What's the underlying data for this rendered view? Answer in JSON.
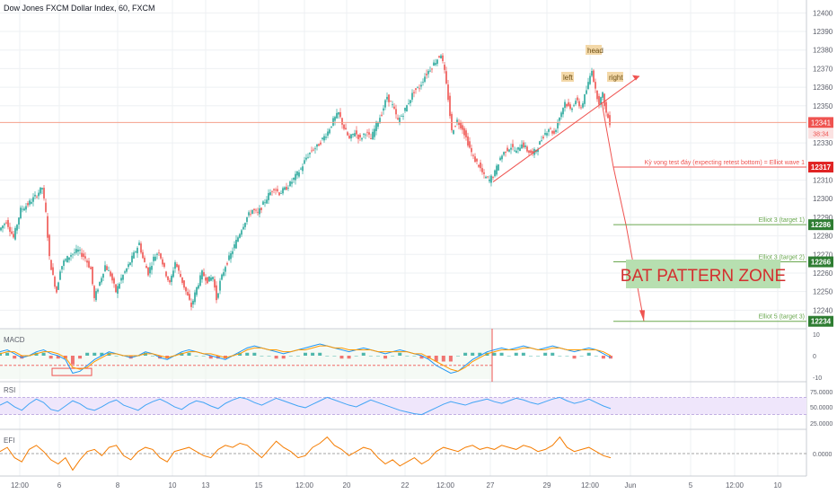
{
  "header": {
    "title": "Dow Jones FXCM Dollar Index, 60, FXCM"
  },
  "colors": {
    "bull": "#26a69a",
    "bear": "#ef5350",
    "grid": "#eef0f3",
    "axis_text": "#5d606b",
    "price_line": "#f5a08c",
    "red_badge": "#e02424",
    "green_badge": "#2e7d32",
    "green_line": "#6aa84f",
    "zone_fill": "#b7dfb0",
    "zone_text": "#d32f2f",
    "macd_line": "#2196f3",
    "signal_line": "#ff9800",
    "rsi_line": "#42a5f5",
    "rsi_band": "#efe6fb",
    "efi_line": "#f57c00"
  },
  "chart_data": [
    {
      "type": "candlestick",
      "name": "price",
      "title": "Dow Jones FXCM Dollar Index, 60, FXCM",
      "ylim": [
        12230,
        12405
      ],
      "y_ticks": [
        12240,
        12250,
        12260,
        12270,
        12280,
        12290,
        12300,
        12310,
        12330,
        12350,
        12360,
        12370,
        12380,
        12390,
        12400
      ],
      "x_ticks": [
        "12:00",
        "6",
        "8",
        "10",
        "13",
        "15",
        "12:00",
        "20",
        "22",
        "12:00",
        "27",
        "29",
        "12:00",
        "Jun",
        "5",
        "12:00",
        "10"
      ],
      "path_points": [
        [
          0,
          12283
        ],
        [
          8,
          12288
        ],
        [
          16,
          12279
        ],
        [
          24,
          12294
        ],
        [
          32,
          12297
        ],
        [
          40,
          12301
        ],
        [
          48,
          12306
        ],
        [
          52,
          12292
        ],
        [
          56,
          12268
        ],
        [
          60,
          12258
        ],
        [
          64,
          12250
        ],
        [
          68,
          12262
        ],
        [
          72,
          12266
        ],
        [
          80,
          12270
        ],
        [
          88,
          12272
        ],
        [
          96,
          12268
        ],
        [
          102,
          12262
        ],
        [
          106,
          12246
        ],
        [
          112,
          12255
        ],
        [
          118,
          12264
        ],
        [
          124,
          12259
        ],
        [
          130,
          12250
        ],
        [
          136,
          12257
        ],
        [
          144,
          12264
        ],
        [
          150,
          12270
        ],
        [
          156,
          12276
        ],
        [
          160,
          12268
        ],
        [
          166,
          12260
        ],
        [
          172,
          12268
        ],
        [
          178,
          12272
        ],
        [
          184,
          12262
        ],
        [
          190,
          12254
        ],
        [
          196,
          12266
        ],
        [
          202,
          12258
        ],
        [
          208,
          12250
        ],
        [
          214,
          12242
        ],
        [
          220,
          12252
        ],
        [
          226,
          12260
        ],
        [
          232,
          12256
        ],
        [
          238,
          12258
        ],
        [
          242,
          12246
        ],
        [
          246,
          12255
        ],
        [
          252,
          12264
        ],
        [
          258,
          12270
        ],
        [
          264,
          12277
        ],
        [
          270,
          12284
        ],
        [
          276,
          12290
        ],
        [
          282,
          12294
        ],
        [
          288,
          12292
        ],
        [
          294,
          12297
        ],
        [
          300,
          12302
        ],
        [
          306,
          12306
        ],
        [
          312,
          12303
        ],
        [
          318,
          12305
        ],
        [
          324,
          12308
        ],
        [
          330,
          12312
        ],
        [
          336,
          12316
        ],
        [
          342,
          12322
        ],
        [
          348,
          12326
        ],
        [
          354,
          12328
        ],
        [
          360,
          12332
        ],
        [
          366,
          12336
        ],
        [
          372,
          12342
        ],
        [
          378,
          12346
        ],
        [
          384,
          12338
        ],
        [
          390,
          12332
        ],
        [
          396,
          12336
        ],
        [
          402,
          12332
        ],
        [
          408,
          12336
        ],
        [
          414,
          12332
        ],
        [
          420,
          12340
        ],
        [
          426,
          12346
        ],
        [
          432,
          12355
        ],
        [
          438,
          12350
        ],
        [
          444,
          12342
        ],
        [
          450,
          12346
        ],
        [
          456,
          12352
        ],
        [
          462,
          12358
        ],
        [
          468,
          12360
        ],
        [
          474,
          12366
        ],
        [
          480,
          12370
        ],
        [
          486,
          12374
        ],
        [
          492,
          12378
        ],
        [
          496,
          12368
        ],
        [
          500,
          12354
        ],
        [
          504,
          12336
        ],
        [
          510,
          12342
        ],
        [
          516,
          12338
        ],
        [
          522,
          12330
        ],
        [
          528,
          12322
        ],
        [
          534,
          12318
        ],
        [
          540,
          12312
        ],
        [
          546,
          12310
        ],
        [
          552,
          12314
        ],
        [
          558,
          12322
        ],
        [
          564,
          12326
        ],
        [
          570,
          12328
        ],
        [
          576,
          12325
        ],
        [
          582,
          12330
        ],
        [
          588,
          12326
        ],
        [
          594,
          12324
        ],
        [
          600,
          12328
        ],
        [
          606,
          12334
        ],
        [
          612,
          12338
        ],
        [
          618,
          12335
        ],
        [
          624,
          12344
        ],
        [
          630,
          12352
        ],
        [
          636,
          12348
        ],
        [
          642,
          12353
        ],
        [
          648,
          12349
        ],
        [
          652,
          12355
        ],
        [
          656,
          12362
        ],
        [
          660,
          12370
        ],
        [
          664,
          12358
        ],
        [
          668,
          12352
        ],
        [
          672,
          12356
        ],
        [
          676,
          12346
        ],
        [
          680,
          12341
        ]
      ]
    },
    {
      "type": "line",
      "name": "MACD",
      "ylim": [
        -12,
        12
      ],
      "y_ticks": [
        "10",
        "0",
        "-10"
      ],
      "series": [
        {
          "name": "MACD",
          "values": [
            2,
            3,
            1,
            -1,
            0,
            2,
            3,
            1,
            0,
            -2,
            -9,
            -8,
            -5,
            -2,
            0,
            2,
            1,
            0,
            -1,
            0,
            2,
            1,
            -1,
            -2,
            0,
            2,
            3,
            2,
            1,
            0,
            -1,
            -2,
            0,
            2,
            4,
            5,
            4,
            3,
            2,
            1,
            2,
            3,
            4,
            5,
            6,
            5,
            4,
            3,
            2,
            3,
            4,
            3,
            2,
            1,
            2,
            3,
            2,
            1,
            0,
            -2,
            -5,
            -7,
            -9,
            -8,
            -5,
            -2,
            0,
            2,
            3,
            4,
            3,
            4,
            5,
            4,
            3,
            4,
            5,
            4,
            3,
            2,
            3,
            4,
            3,
            1,
            -1
          ]
        },
        {
          "name": "Signal",
          "values": [
            1,
            2,
            2,
            0,
            0,
            1,
            2,
            2,
            1,
            -1,
            -6,
            -7,
            -6,
            -3,
            -1,
            1,
            1,
            0,
            0,
            0,
            1,
            1,
            0,
            -1,
            0,
            1,
            2,
            2,
            1,
            1,
            0,
            -1,
            0,
            1,
            3,
            4,
            4,
            3,
            3,
            2,
            2,
            3,
            3,
            4,
            5,
            5,
            4,
            4,
            3,
            3,
            3,
            3,
            2,
            2,
            2,
            2,
            2,
            1,
            1,
            -1,
            -3,
            -5,
            -7,
            -8,
            -6,
            -3,
            -1,
            1,
            2,
            3,
            3,
            3,
            4,
            4,
            3,
            3,
            4,
            4,
            3,
            3,
            3,
            3,
            3,
            2,
            0
          ]
        }
      ]
    },
    {
      "type": "line",
      "name": "RSI",
      "ylim": [
        0,
        100
      ],
      "y_ticks": [
        "75.0000",
        "50.0000",
        "25.0000"
      ],
      "band": [
        30,
        70
      ],
      "series": [
        {
          "name": "RSI",
          "values": [
            52,
            60,
            48,
            40,
            55,
            66,
            58,
            42,
            38,
            50,
            62,
            55,
            44,
            40,
            48,
            58,
            64,
            52,
            46,
            40,
            52,
            60,
            66,
            58,
            48,
            42,
            54,
            62,
            58,
            50,
            44,
            56,
            64,
            70,
            66,
            58,
            52,
            60,
            68,
            62,
            56,
            50,
            46,
            54,
            62,
            70,
            64,
            58,
            52,
            48,
            56,
            64,
            58,
            52,
            46,
            40,
            36,
            32,
            30,
            38,
            46,
            54,
            60,
            56,
            52,
            58,
            62,
            66,
            60,
            56,
            62,
            68,
            64,
            58,
            54,
            60,
            66,
            70,
            62,
            56,
            60,
            66,
            58,
            50,
            44
          ]
        }
      ]
    },
    {
      "type": "line",
      "name": "EFI",
      "ylim": [
        -1,
        1
      ],
      "y_ticks": [
        "0.0000"
      ],
      "series": [
        {
          "name": "EFI",
          "values": [
            0.1,
            0.3,
            -0.2,
            -0.4,
            0.2,
            0.4,
            0.1,
            -0.3,
            -0.5,
            -0.2,
            -0.8,
            -0.3,
            0.1,
            0.2,
            -0.1,
            0.3,
            0.4,
            -0.1,
            -0.3,
            0.1,
            0.3,
            0.2,
            -0.2,
            -0.4,
            0.1,
            0.2,
            0.3,
            0.1,
            -0.1,
            -0.2,
            0.2,
            0.4,
            0.3,
            0.5,
            0.4,
            0.1,
            -0.2,
            0.2,
            0.6,
            0.3,
            0.1,
            -0.2,
            -0.1,
            0.3,
            0.5,
            0.8,
            0.4,
            0.2,
            -0.1,
            0.1,
            0.3,
            0.2,
            -0.2,
            -0.5,
            -0.3,
            -0.6,
            -0.4,
            -0.2,
            -0.5,
            -0.3,
            0.1,
            0.3,
            0.2,
            0.1,
            0.3,
            0.4,
            0.2,
            0.3,
            0.2,
            0.4,
            0.3,
            0.2,
            0.4,
            0.3,
            0.1,
            0.2,
            0.4,
            0.8,
            0.3,
            0.1,
            0.2,
            0.3,
            0.1,
            -0.1,
            -0.2
          ]
        }
      ]
    }
  ],
  "price_levels": {
    "current": {
      "value": 12341,
      "label": "12341",
      "countdown": "38:34"
    },
    "retest": {
      "value": 12317,
      "label": "12317",
      "text": "Kỳ vọng test đáy (expecting retest bottom) = Elliot wave 1"
    },
    "target1": {
      "value": 12286,
      "label": "12286",
      "text": "Elliot 3 (target 1)"
    },
    "target2": {
      "value": 12266,
      "label": "12266",
      "text": "Elliot 3 (target 2)"
    },
    "target3": {
      "value": 12234,
      "label": "12234",
      "text": "Elliot 5 (target 3)"
    }
  },
  "annotations": {
    "head": "head",
    "left": "left",
    "right": "right",
    "zone": "BAT PATTERN ZONE"
  },
  "panes": {
    "macd": "MACD",
    "rsi": "RSI",
    "efi": "EFI"
  }
}
